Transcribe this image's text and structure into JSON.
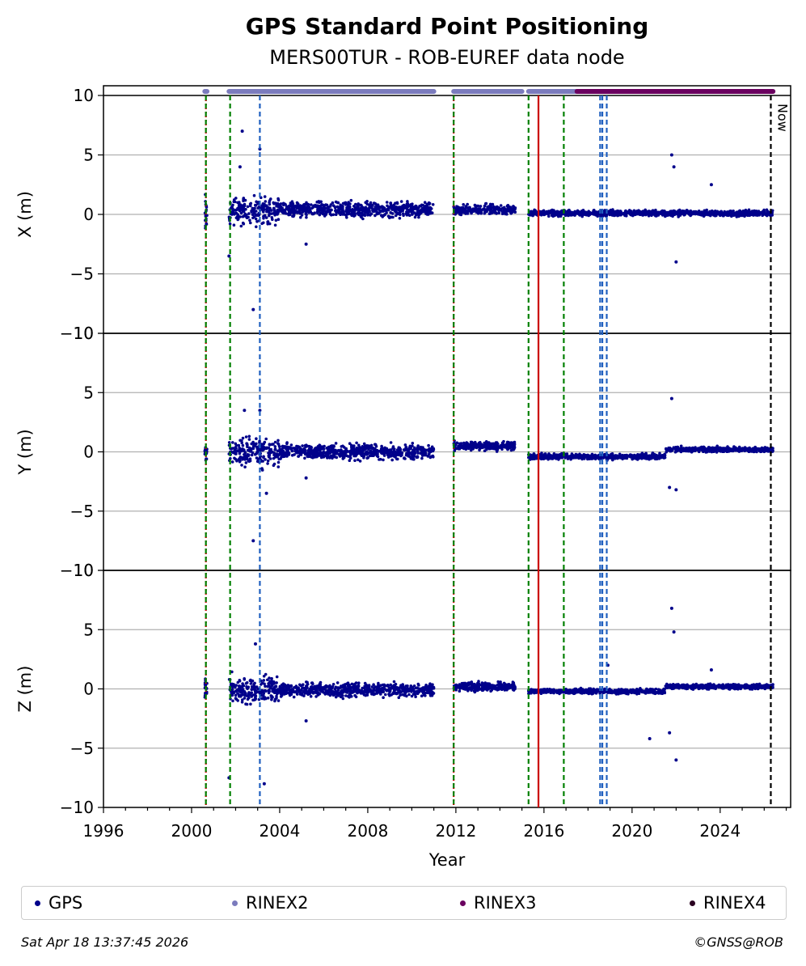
{
  "title": "GPS Standard Point Positioning",
  "subtitle": "MERS00TUR - ROB-EUREF data node",
  "footer": {
    "timestamp": "Sat Apr 18 13:37:45 2026",
    "credit": "©GNSS@ROB"
  },
  "now_label": "Now",
  "legend": [
    {
      "label": "GPS",
      "color": "#00008b"
    },
    {
      "label": "RINEX2",
      "color": "#7b7bbd"
    },
    {
      "label": "RINEX3",
      "color": "#6a005f"
    },
    {
      "label": "RINEX4",
      "color": "#2a0020"
    }
  ],
  "chart_data": {
    "type": "scatter",
    "xlabel": "Year",
    "xlim": [
      1996,
      2027.2
    ],
    "x_ticks": [
      1996,
      2000,
      2004,
      2008,
      2012,
      2016,
      2020,
      2024
    ],
    "y_ticks": [
      -10,
      -5,
      0,
      5,
      10
    ],
    "grid": "horizontal",
    "legend_position": "bottom",
    "panels": [
      {
        "ylabel": "X (m)",
        "ylim": [
          -10,
          10.8
        ],
        "segments": [
          {
            "x": [
              2000.6,
              2000.7
            ],
            "center": 0,
            "spread": 2.5
          },
          {
            "x": [
              2001.7,
              2004.0
            ],
            "center": 0.3,
            "spread": 1.6
          },
          {
            "x": [
              2004.0,
              2011.0
            ],
            "center": 0.4,
            "spread": 0.9
          },
          {
            "x": [
              2011.9,
              2014.7
            ],
            "center": 0.4,
            "spread": 0.6
          },
          {
            "x": [
              2015.3,
              2026.4
            ],
            "center": 0.1,
            "spread": 0.35
          }
        ],
        "outliers": [
          [
            2001.7,
            -3.5
          ],
          [
            2002.3,
            7.0
          ],
          [
            2002.8,
            -8.0
          ],
          [
            2003.1,
            5.5
          ],
          [
            2002.2,
            4.0
          ],
          [
            2005.2,
            -2.5
          ],
          [
            2021.8,
            5.0
          ],
          [
            2021.9,
            4.0
          ],
          [
            2022.0,
            -4.0
          ],
          [
            2023.6,
            2.5
          ]
        ]
      },
      {
        "ylabel": "Y (m)",
        "ylim": [
          -10,
          10
        ],
        "segments": [
          {
            "x": [
              2000.6,
              2000.7
            ],
            "center": 0,
            "spread": 1.0
          },
          {
            "x": [
              2001.7,
              2004.0
            ],
            "center": 0,
            "spread": 1.8
          },
          {
            "x": [
              2004.0,
              2011.0
            ],
            "center": 0,
            "spread": 0.9
          },
          {
            "x": [
              2011.9,
              2014.7
            ],
            "center": 0.5,
            "spread": 0.5
          },
          {
            "x": [
              2015.3,
              2021.5
            ],
            "center": -0.4,
            "spread": 0.35
          },
          {
            "x": [
              2021.5,
              2026.4
            ],
            "center": 0.2,
            "spread": 0.3
          }
        ],
        "outliers": [
          [
            2002.4,
            3.5
          ],
          [
            2003.1,
            3.5
          ],
          [
            2002.8,
            -7.5
          ],
          [
            2003.4,
            -3.5
          ],
          [
            2005.2,
            -2.2
          ],
          [
            2021.8,
            4.5
          ],
          [
            2021.7,
            -3.0
          ],
          [
            2022.0,
            -3.2
          ]
        ]
      },
      {
        "ylabel": "Z (m)",
        "ylim": [
          -10,
          10
        ],
        "segments": [
          {
            "x": [
              2000.6,
              2000.7
            ],
            "center": 0,
            "spread": 1.2
          },
          {
            "x": [
              2001.7,
              2004.0
            ],
            "center": 0,
            "spread": 1.6
          },
          {
            "x": [
              2004.0,
              2011.0
            ],
            "center": -0.1,
            "spread": 0.8
          },
          {
            "x": [
              2011.9,
              2014.7
            ],
            "center": 0.2,
            "spread": 0.5
          },
          {
            "x": [
              2015.3,
              2021.5
            ],
            "center": -0.2,
            "spread": 0.3
          },
          {
            "x": [
              2021.5,
              2026.4
            ],
            "center": 0.2,
            "spread": 0.3
          }
        ],
        "outliers": [
          [
            2001.7,
            -7.5
          ],
          [
            2002.9,
            3.8
          ],
          [
            2003.3,
            -8.0
          ],
          [
            2005.2,
            -2.7
          ],
          [
            2021.8,
            6.8
          ],
          [
            2021.9,
            4.8
          ],
          [
            2020.8,
            -4.2
          ],
          [
            2021.7,
            -3.7
          ],
          [
            2022.0,
            -6.0
          ],
          [
            2023.6,
            1.6
          ],
          [
            2018.9,
            2.0
          ]
        ]
      }
    ],
    "events": [
      {
        "year": 2000.65,
        "color": "#cc0000",
        "style": "dotted"
      },
      {
        "year": 2000.65,
        "color": "#008000",
        "style": "dashed"
      },
      {
        "year": 2001.75,
        "color": "#008000",
        "style": "dashed"
      },
      {
        "year": 2003.1,
        "color": "#1f5fbf",
        "style": "dashed"
      },
      {
        "year": 2011.9,
        "color": "#cc0000",
        "style": "dotted"
      },
      {
        "year": 2011.9,
        "color": "#008000",
        "style": "dashed"
      },
      {
        "year": 2015.3,
        "color": "#008000",
        "style": "dashed"
      },
      {
        "year": 2015.75,
        "color": "#cc0000",
        "style": "solid"
      },
      {
        "year": 2016.9,
        "color": "#008000",
        "style": "dashed"
      },
      {
        "year": 2018.55,
        "color": "#1f5fbf",
        "style": "dashed"
      },
      {
        "year": 2018.65,
        "color": "#1f5fbf",
        "style": "dashed"
      },
      {
        "year": 2018.85,
        "color": "#1f5fbf",
        "style": "dashed"
      },
      {
        "year": 2026.3,
        "color": "#000000",
        "style": "dashed"
      }
    ],
    "availability": [
      {
        "series": "RINEX2",
        "color": "#7b7bbd",
        "ranges": [
          [
            2000.6,
            2000.7
          ],
          [
            2001.7,
            2011.0
          ],
          [
            2011.9,
            2015.0
          ],
          [
            2015.3,
            2017.5
          ]
        ]
      },
      {
        "series": "RINEX3",
        "color": "#6a005f",
        "ranges": [
          [
            2017.5,
            2026.4
          ]
        ]
      }
    ]
  }
}
